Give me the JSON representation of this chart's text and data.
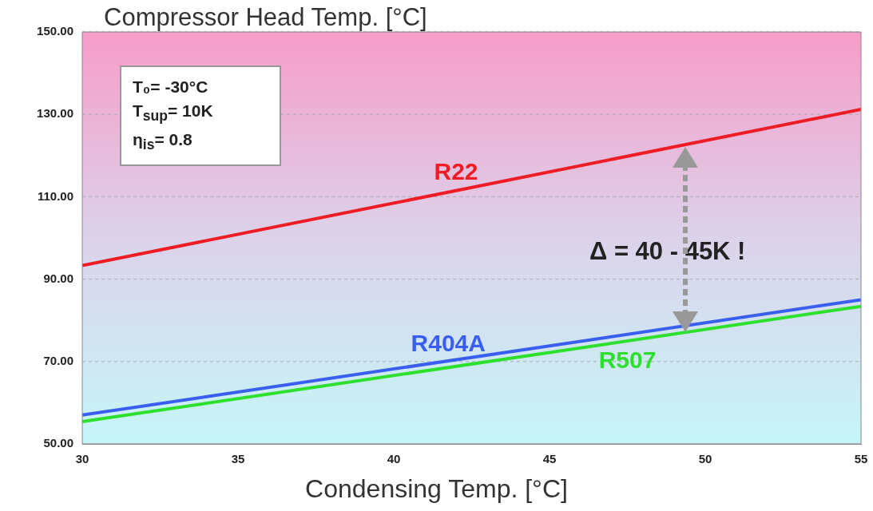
{
  "chart_data": {
    "type": "line",
    "title": "Compressor Head Temp. [°C]",
    "xlabel": "Condensing Temp. [°C]",
    "x": [
      30,
      55
    ],
    "series": [
      {
        "name": "R22",
        "color": "#ee1c24",
        "values": [
          93.3,
          131.2
        ]
      },
      {
        "name": "R404A",
        "color": "#3a5ef0",
        "values": [
          57.0,
          85.0
        ]
      },
      {
        "name": "R507",
        "color": "#2ee02e",
        "values": [
          55.4,
          83.4
        ]
      }
    ],
    "xlim": [
      30,
      55
    ],
    "xticks": [
      30,
      35,
      40,
      45,
      50,
      55
    ],
    "ylim": [
      50,
      150
    ],
    "yticks": [
      {
        "value": 50,
        "label": "50.00"
      },
      {
        "value": 70,
        "label": "70.00"
      },
      {
        "value": 90,
        "label": "90.00"
      },
      {
        "value": 110,
        "label": "110.00"
      },
      {
        "value": 130,
        "label": "130.00"
      },
      {
        "value": 150,
        "label": "150.00"
      }
    ],
    "grid": "y",
    "marker": "none",
    "line_style": "solid",
    "annotations": [
      "T₀= -30°C",
      "T$_{sup}$= 10K",
      "η$_{is}$= 0.8",
      "Δ = 40 - 45K !"
    ]
  }
}
